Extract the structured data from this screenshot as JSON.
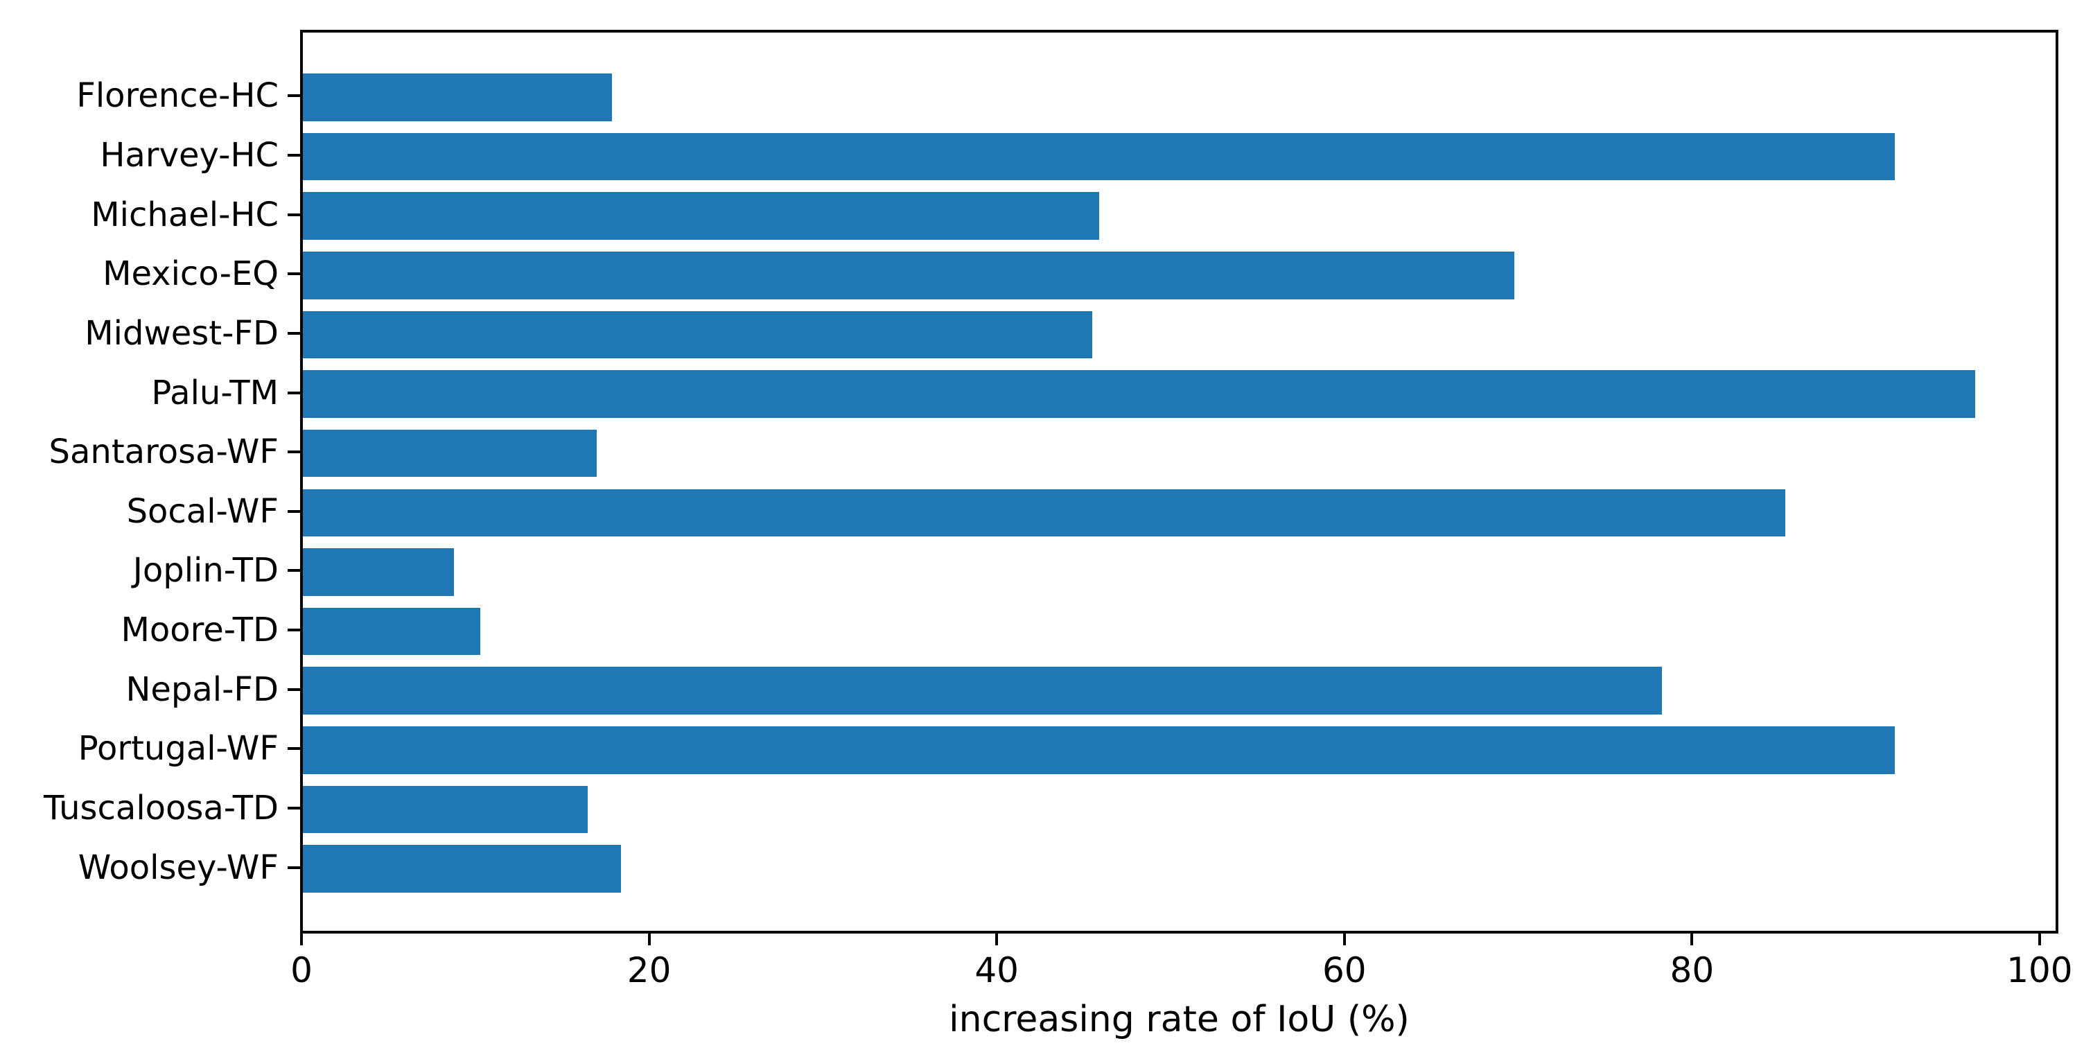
{
  "chart_data": {
    "type": "bar",
    "orientation": "horizontal",
    "title": "",
    "xlabel": "increasing rate of IoU (%)",
    "ylabel": "",
    "categories": [
      "Florence-HC",
      "Harvey-HC",
      "Michael-HC",
      "Mexico-EQ",
      "Midwest-FD",
      "Palu-TM",
      "Santarosa-WF",
      "Socal-WF",
      "Joplin-TD",
      "Moore-TD",
      "Nepal-FD",
      "Portugal-WF",
      "Tuscaloosa-TD",
      "Woolsey-WF"
    ],
    "values": [
      17.8,
      91.6,
      45.8,
      69.7,
      45.4,
      96.2,
      16.9,
      85.3,
      8.7,
      10.2,
      78.2,
      91.6,
      16.4,
      18.3
    ],
    "xticks": [
      0,
      20,
      40,
      60,
      80,
      100
    ],
    "xlim": [
      0,
      101
    ],
    "bar_height_fraction": 0.8,
    "grid": false,
    "legend_position": "none",
    "bar_color": "#1f77b4",
    "axis_color": "#000000",
    "text_color": "#000000",
    "background_color": "#ffffff"
  }
}
